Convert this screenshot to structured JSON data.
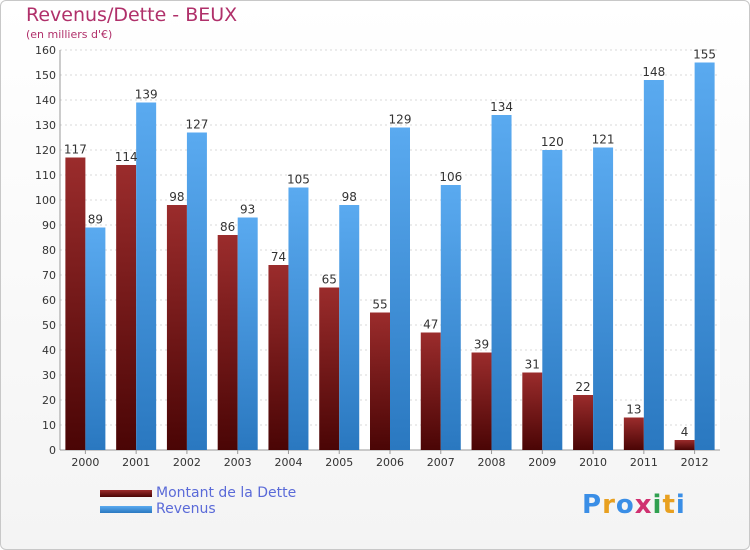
{
  "chart_data": {
    "type": "bar",
    "title": "Revenus/Dette - BEUX",
    "subtitle": "(en milliers d'€)",
    "xlabel": "",
    "ylabel": "",
    "ylim": [
      0,
      160
    ],
    "yticks": [
      0,
      10,
      20,
      30,
      40,
      50,
      60,
      70,
      80,
      90,
      100,
      110,
      120,
      130,
      140,
      150,
      160
    ],
    "grid": true,
    "categories": [
      "2000",
      "2001",
      "2002",
      "2003",
      "2004",
      "2005",
      "2006",
      "2007",
      "2008",
      "2009",
      "2010",
      "2011",
      "2012"
    ],
    "series": [
      {
        "name": "Montant de la Dette",
        "values": [
          117,
          114,
          98,
          86,
          74,
          65,
          55,
          47,
          39,
          31,
          22,
          13,
          4
        ],
        "color_top": "#9b2c2c",
        "color_bottom": "#4a0505"
      },
      {
        "name": "Revenus",
        "values": [
          89,
          139,
          127,
          93,
          105,
          98,
          129,
          106,
          134,
          120,
          121,
          148,
          155
        ],
        "color_top": "#5aaaf0",
        "color_bottom": "#2a78c0"
      }
    ],
    "legend_position": "bottom-left"
  },
  "logo": {
    "letters": [
      "P",
      "r",
      "o",
      "x",
      "i",
      "t",
      "i"
    ],
    "colors": [
      "#3a8ee6",
      "#e8a020",
      "#3a8ee6",
      "#d03070",
      "#30a050",
      "#e8a020",
      "#3a8ee6"
    ]
  }
}
